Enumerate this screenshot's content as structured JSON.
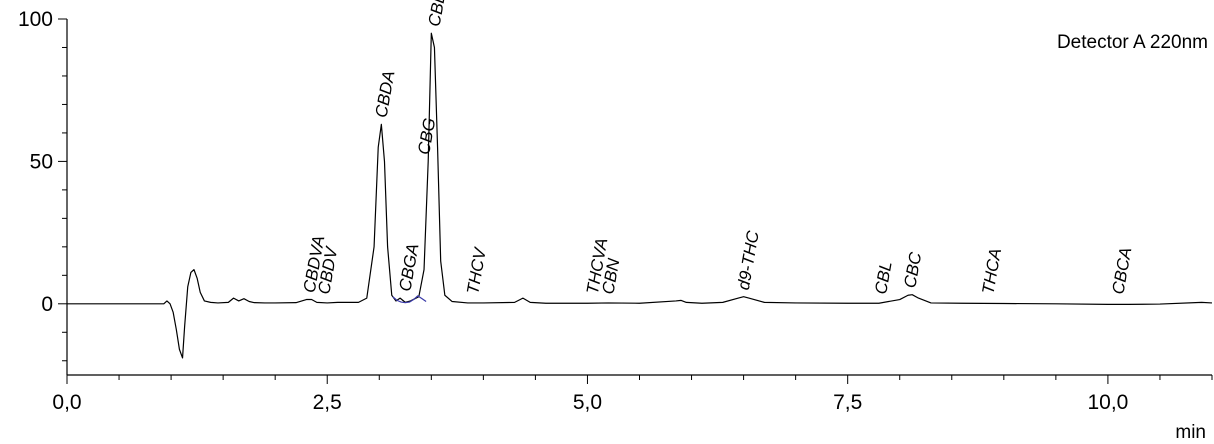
{
  "chart_data": {
    "type": "line",
    "title": "",
    "detector_label": "Detector A 220nm",
    "xlabel": "min",
    "ylabel": "",
    "xlim": [
      0,
      11.0
    ],
    "ylim": [
      -25,
      100
    ],
    "x_ticks": [
      {
        "value": 0,
        "label": "0,0"
      },
      {
        "value": 2.5,
        "label": "2,5"
      },
      {
        "value": 5.0,
        "label": "5,0"
      },
      {
        "value": 7.5,
        "label": "7,5"
      },
      {
        "value": 10.0,
        "label": "10,0"
      }
    ],
    "y_ticks": [
      {
        "value": 0,
        "label": "0"
      },
      {
        "value": 50,
        "label": "50"
      },
      {
        "value": 100,
        "label": "100"
      }
    ],
    "grid": false,
    "series": [
      {
        "color": "#000000",
        "x": [
          0.0,
          0.93,
          0.96,
          0.99,
          1.02,
          1.05,
          1.08,
          1.11,
          1.13,
          1.16,
          1.19,
          1.22,
          1.25,
          1.28,
          1.32,
          1.38,
          1.45,
          1.55,
          1.6,
          1.65,
          1.7,
          1.75,
          1.8,
          1.9,
          2.0,
          2.2,
          2.3,
          2.35,
          2.4,
          2.5,
          2.6,
          2.8,
          2.88,
          2.95,
          2.99,
          3.02,
          3.05,
          3.08,
          3.12,
          3.16,
          3.2,
          3.25,
          3.3,
          3.38,
          3.43,
          3.47,
          3.5,
          3.53,
          3.56,
          3.59,
          3.63,
          3.7,
          3.85,
          4.0,
          4.3,
          4.38,
          4.45,
          4.6,
          5.0,
          5.2,
          5.5,
          5.85,
          5.9,
          5.95,
          6.1,
          6.3,
          6.45,
          6.5,
          6.55,
          6.7,
          7.0,
          7.5,
          7.8,
          8.0,
          8.08,
          8.12,
          8.18,
          8.3,
          8.6,
          9.0,
          9.5,
          10.0,
          10.1,
          10.2,
          10.5,
          10.9,
          11.0
        ],
        "y": [
          0,
          0,
          1,
          0,
          -3,
          -9,
          -16,
          -19,
          -8,
          6,
          11,
          12,
          9,
          4,
          1,
          0.5,
          0.3,
          0.5,
          2,
          1,
          1.8,
          0.8,
          0.4,
          0.3,
          0.3,
          0.4,
          1.5,
          1.5,
          0.5,
          0.3,
          0.5,
          0.5,
          2,
          20,
          55,
          63,
          50,
          20,
          3,
          1,
          2,
          0.5,
          1,
          2.5,
          12,
          50,
          95,
          90,
          55,
          15,
          3,
          0.8,
          0.3,
          0.3,
          0.5,
          2,
          0.5,
          0.2,
          0.2,
          0.3,
          0.2,
          1,
          1.2,
          0.5,
          0.2,
          0.5,
          2,
          2.5,
          2,
          0.5,
          0.3,
          0.2,
          0.2,
          1.5,
          3,
          3.2,
          2,
          0.3,
          0.2,
          0.1,
          0,
          -0.2,
          -0.2,
          -0.2,
          -0.1,
          0.5,
          0.3
        ]
      },
      {
        "color": "#3a3aa8",
        "x": [
          3.13,
          3.17,
          3.21,
          3.25,
          3.29,
          3.33,
          3.37,
          3.41,
          3.45
        ],
        "y": [
          2.5,
          1.2,
          0.6,
          0.4,
          0.6,
          1.5,
          2.8,
          1.8,
          0.8
        ]
      }
    ],
    "peaks": [
      {
        "name": "CBDVA",
        "x": 2.33
      },
      {
        "name": "CBDV",
        "x": 2.47
      },
      {
        "name": "CBDA",
        "x": 3.02
      },
      {
        "name": "CBGA",
        "x": 3.25
      },
      {
        "name": "CBG",
        "x": 3.43
      },
      {
        "name": "CBD",
        "x": 3.53
      },
      {
        "name": "THCV",
        "x": 3.9
      },
      {
        "name": "THCVA",
        "x": 5.05
      },
      {
        "name": "CBN",
        "x": 5.2
      },
      {
        "name": "d9-THC",
        "x": 6.5
      },
      {
        "name": "CBL",
        "x": 7.82
      },
      {
        "name": "CBC",
        "x": 8.1
      },
      {
        "name": "THCA",
        "x": 8.85
      },
      {
        "name": "CBCA",
        "x": 10.1
      }
    ]
  }
}
